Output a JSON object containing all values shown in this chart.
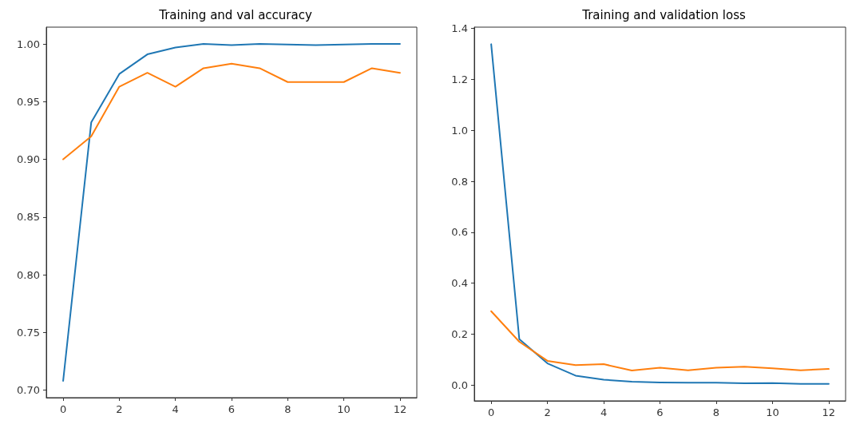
{
  "chart_data": [
    {
      "type": "line",
      "title": "Training and val accuracy",
      "x": [
        0,
        1,
        2,
        3,
        4,
        5,
        6,
        7,
        8,
        9,
        10,
        11,
        12
      ],
      "xlim": [
        -0.6,
        12.6
      ],
      "xticks": [
        0,
        2,
        4,
        6,
        8,
        10,
        12
      ],
      "ylim": [
        0.6934,
        1.0146
      ],
      "yticks": [
        {
          "value": 0.7,
          "label": "0.70"
        },
        {
          "value": 0.75,
          "label": "0.75"
        },
        {
          "value": 0.8,
          "label": "0.80"
        },
        {
          "value": 0.85,
          "label": "0.85"
        },
        {
          "value": 0.9,
          "label": "0.90"
        },
        {
          "value": 0.95,
          "label": "0.95"
        },
        {
          "value": 1.0,
          "label": "1.00"
        }
      ],
      "grid": false,
      "series": [
        {
          "color": "#1f77b4",
          "values": [
            0.708,
            0.932,
            0.974,
            0.991,
            0.997,
            1.0,
            0.999,
            1.0,
            0.9995,
            0.999,
            0.9995,
            1.0,
            1.0
          ]
        },
        {
          "color": "#ff7f0e",
          "values": [
            0.9,
            0.92,
            0.963,
            0.975,
            0.963,
            0.979,
            0.983,
            0.979,
            0.967,
            0.967,
            0.967,
            0.979,
            0.975
          ]
        }
      ]
    },
    {
      "type": "line",
      "title": "Training and validation loss",
      "x": [
        0,
        1,
        2,
        3,
        4,
        5,
        6,
        7,
        8,
        9,
        10,
        11,
        12
      ],
      "xlim": [
        -0.6,
        12.6
      ],
      "xticks": [
        0,
        2,
        4,
        6,
        8,
        10,
        12
      ],
      "ylim": [
        -0.062,
        1.405
      ],
      "yticks": [
        {
          "value": 0,
          "label": "0.0"
        },
        {
          "value": 0.2,
          "label": "0.2"
        },
        {
          "value": 0.4,
          "label": "0.4"
        },
        {
          "value": 0.6,
          "label": "0.6"
        },
        {
          "value": 0.8,
          "label": "0.8"
        },
        {
          "value": 1.0,
          "label": "1.0"
        },
        {
          "value": 1.2,
          "label": "1.2"
        },
        {
          "value": 1.4,
          "label": "1.4"
        }
      ],
      "grid": false,
      "series": [
        {
          "color": "#1f77b4",
          "values": [
            1.338,
            0.18,
            0.085,
            0.037,
            0.021,
            0.013,
            0.01,
            0.009,
            0.009,
            0.007,
            0.008,
            0.005,
            0.005
          ]
        },
        {
          "color": "#ff7f0e",
          "values": [
            0.29,
            0.17,
            0.095,
            0.078,
            0.082,
            0.057,
            0.068,
            0.058,
            0.068,
            0.072,
            0.066,
            0.058,
            0.063
          ]
        }
      ]
    }
  ]
}
